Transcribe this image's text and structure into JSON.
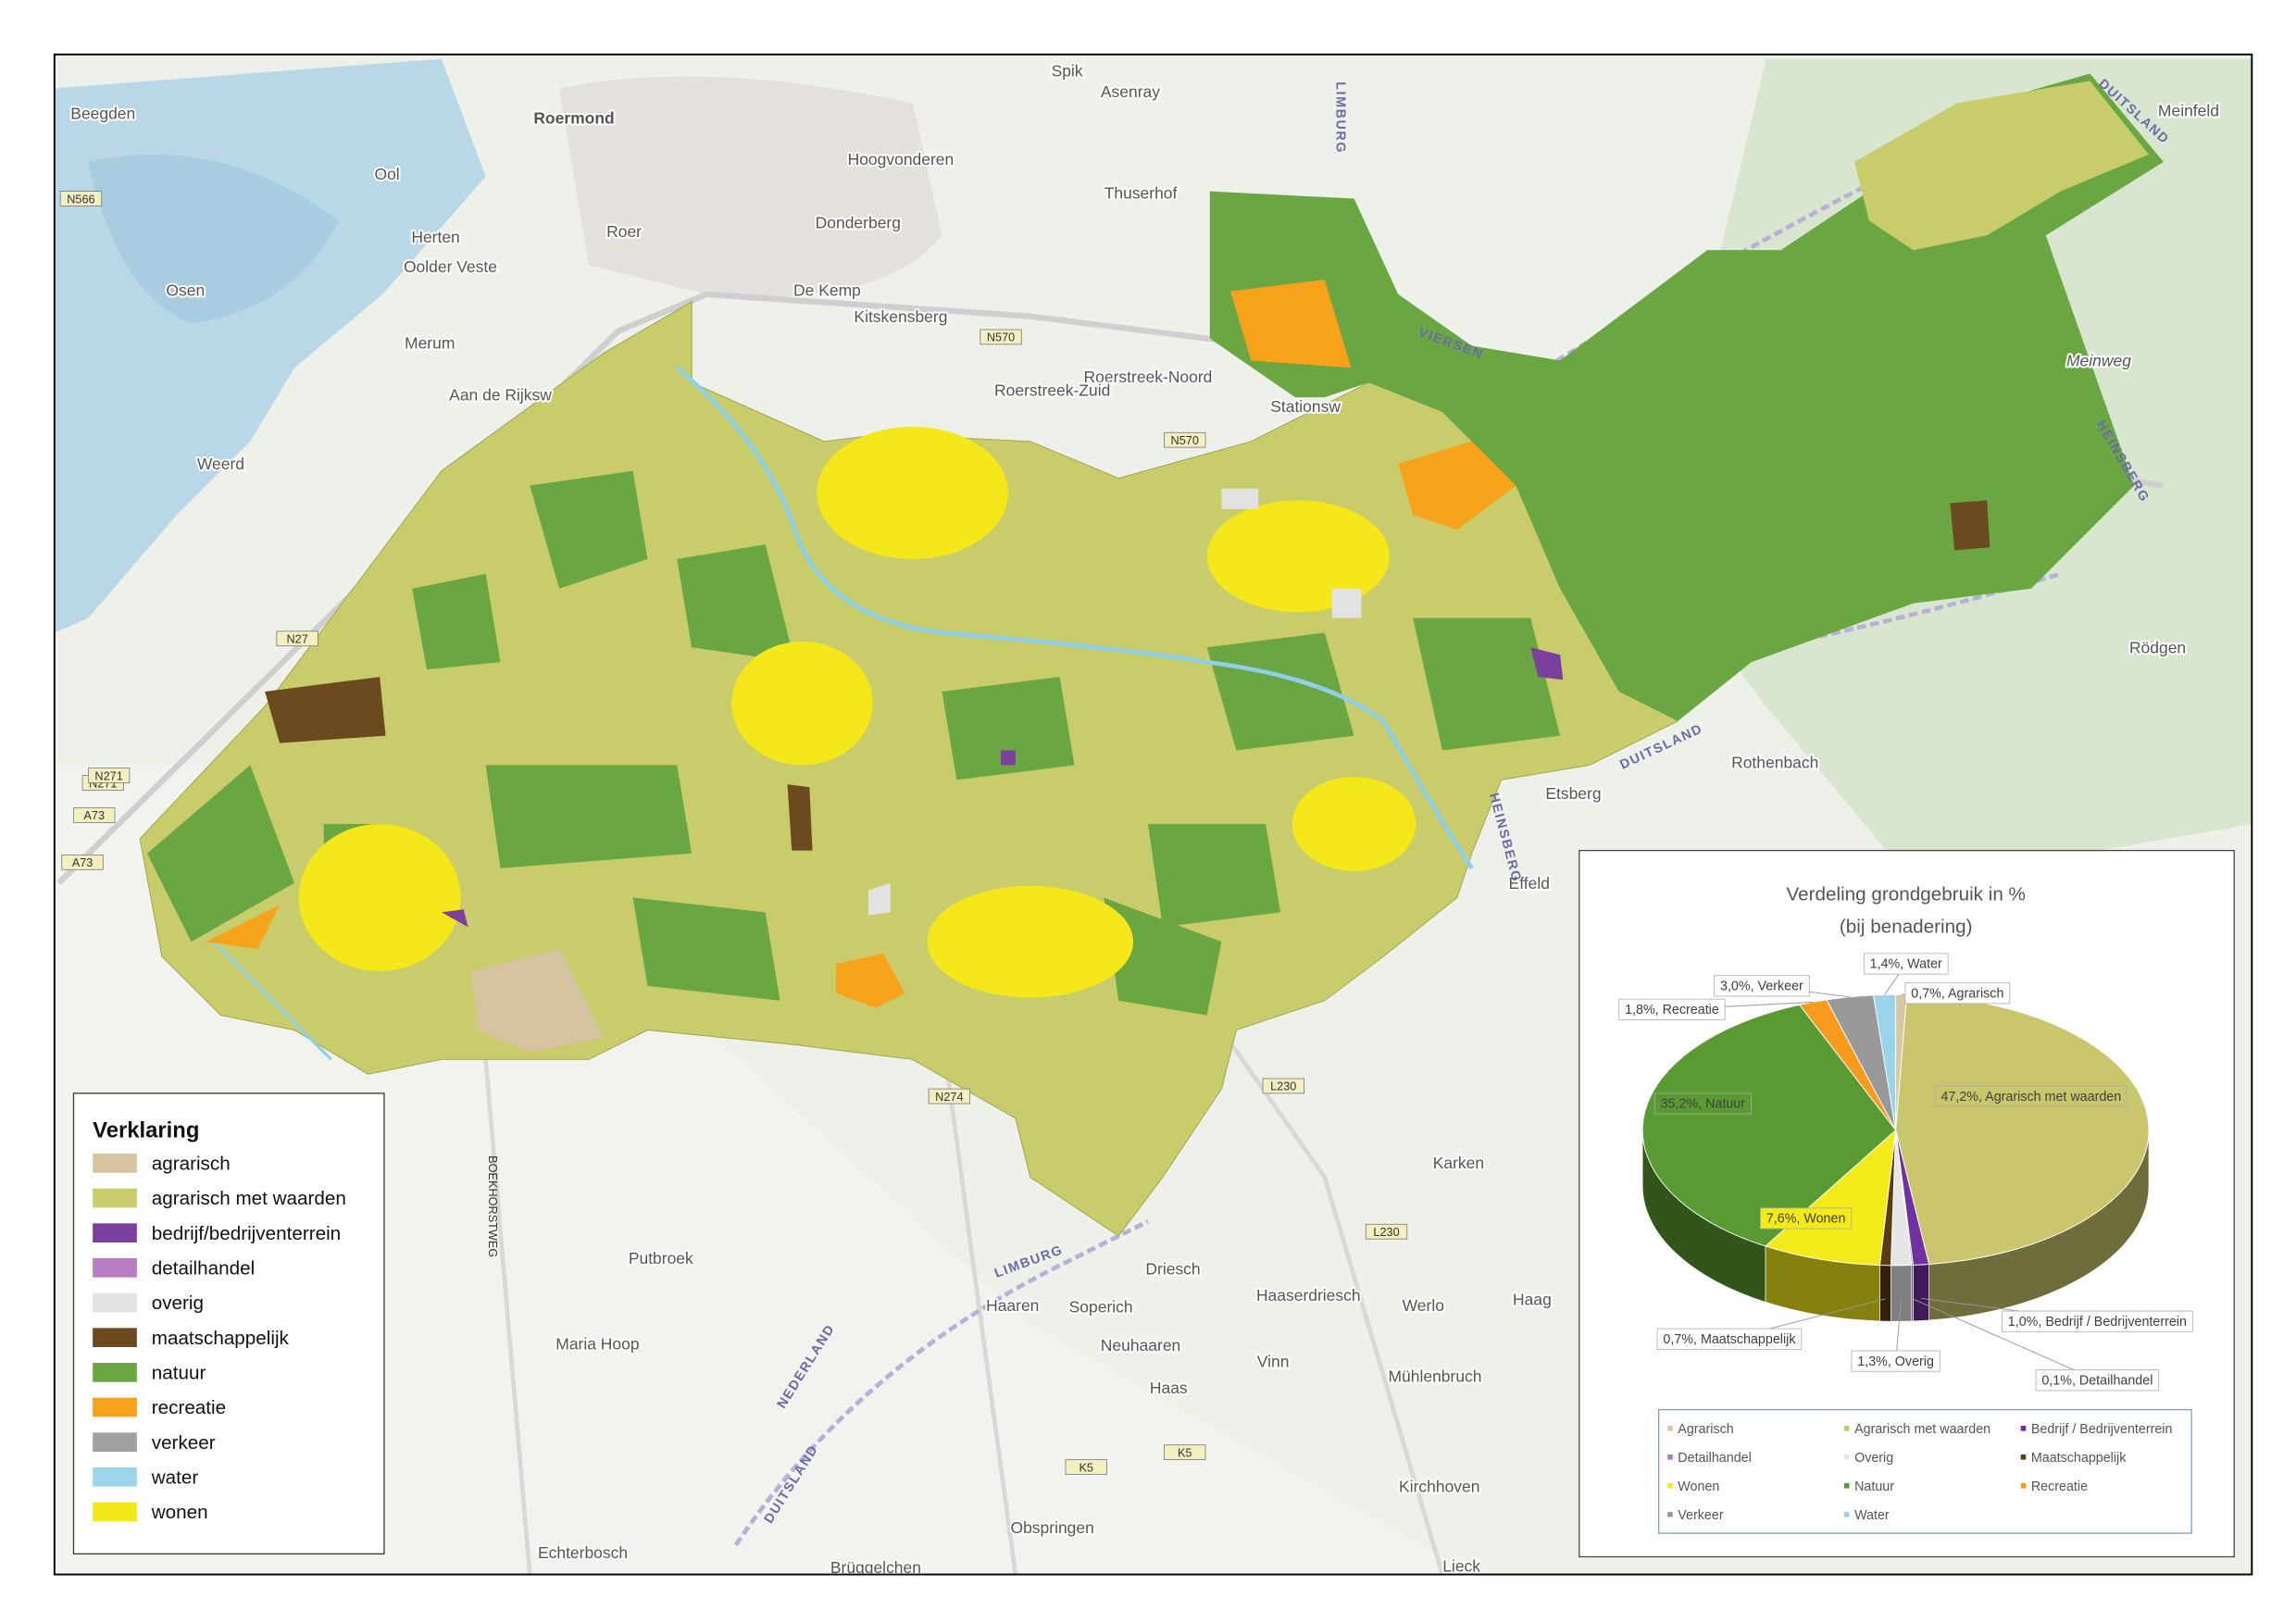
{
  "map": {
    "places": [
      "Roermond",
      "Beegden",
      "Spik",
      "Asenray",
      "Hoogvonderen",
      "Ool",
      "Thuserhof",
      "Herten",
      "Roer",
      "Donderberg",
      "Oolder Veste",
      "Osen",
      "De Kemp",
      "Kitskensberg",
      "Merum",
      "Meinweg",
      "Aan de Rijksw",
      "Roerstreek-Noord",
      "Roerstreek-Zuid",
      "Stationsw",
      "Weerd",
      "Rödgen",
      "Rothenbach",
      "Etsberg",
      "Effeld",
      "Karken",
      "Putbroek",
      "Driesch",
      "Haaserdriesch",
      "Haaren",
      "Soperich",
      "Werlo",
      "Haag",
      "Maria Hoop",
      "Neuhaaren",
      "Vinn",
      "Mühlenbruch",
      "Haas",
      "Kirchhoven",
      "Obspringen",
      "Echterbosch",
      "Brüggelchen",
      "Lieck",
      "Meinfeld"
    ],
    "road_labels": [
      "N566",
      "N271",
      "A73",
      "A73",
      "N271",
      "N27",
      "N570",
      "N570",
      "N274",
      "L230",
      "L230",
      "K5",
      "K5",
      "BOEKHORSTWEG"
    ],
    "border_labels": [
      "DUITSLAND",
      "DUITSLAND",
      "LIMBURG",
      "VIERSEN",
      "HEINSBERG",
      "NEDERLAND",
      "DUITSLAND",
      "LIMBURG",
      "HEINSBERG"
    ]
  },
  "legend": {
    "title": "Verklaring",
    "items": [
      {
        "label": "agrarisch",
        "color": "#d8c3a0"
      },
      {
        "label": "agrarisch met waarden",
        "color": "#c9cc6b"
      },
      {
        "label": "bedrijf/bedrijventerrein",
        "color": "#7b3f9e"
      },
      {
        "label": "detailhandel",
        "color": "#b77cc2"
      },
      {
        "label": "overig",
        "color": "#e2e2e2"
      },
      {
        "label": "maatschappelijk",
        "color": "#6b4a1f"
      },
      {
        "label": "natuur",
        "color": "#6aa642"
      },
      {
        "label": "recreatie",
        "color": "#f7a21b"
      },
      {
        "label": "verkeer",
        "color": "#a0a0a0"
      },
      {
        "label": "water",
        "color": "#9dd6ea"
      },
      {
        "label": "wonen",
        "color": "#f5e81a"
      }
    ]
  },
  "chart_data": {
    "type": "pie",
    "title": "Verdeling grondgebruik in %",
    "subtitle": "(bij benadering)",
    "categories": [
      "Agrarisch",
      "Agrarisch met waarden",
      "Bedrijf / Bedrijventerrein",
      "Detailhandel",
      "Overig",
      "Maatschappelijk",
      "Wonen",
      "Natuur",
      "Recreatie",
      "Verkeer",
      "Water"
    ],
    "values": [
      0.7,
      47.2,
      1.0,
      0.1,
      1.3,
      0.7,
      7.6,
      35.2,
      1.8,
      3.0,
      1.4
    ],
    "value_labels": [
      "0,7%, Agrarisch",
      "47,2%, Agrarisch met waarden",
      "1,0%, Bedrijf / Bedrijventerrein",
      "0,1%, Detailhandel",
      "1,3%, Overig",
      "0,7%, Maatschappelijk",
      "7,6%, Wonen",
      "35,2%, Natuur",
      "1,8%, Recreatie",
      "3,0%, Verkeer",
      "1,4%, Water"
    ],
    "colors": [
      "#d9c6a3",
      "#c9c66d",
      "#7030a0",
      "#a87ab8",
      "#e6e6e6",
      "#5b3b15",
      "#f3ea1a",
      "#5a9a32",
      "#f79a1e",
      "#999999",
      "#9ad4ea"
    ]
  }
}
